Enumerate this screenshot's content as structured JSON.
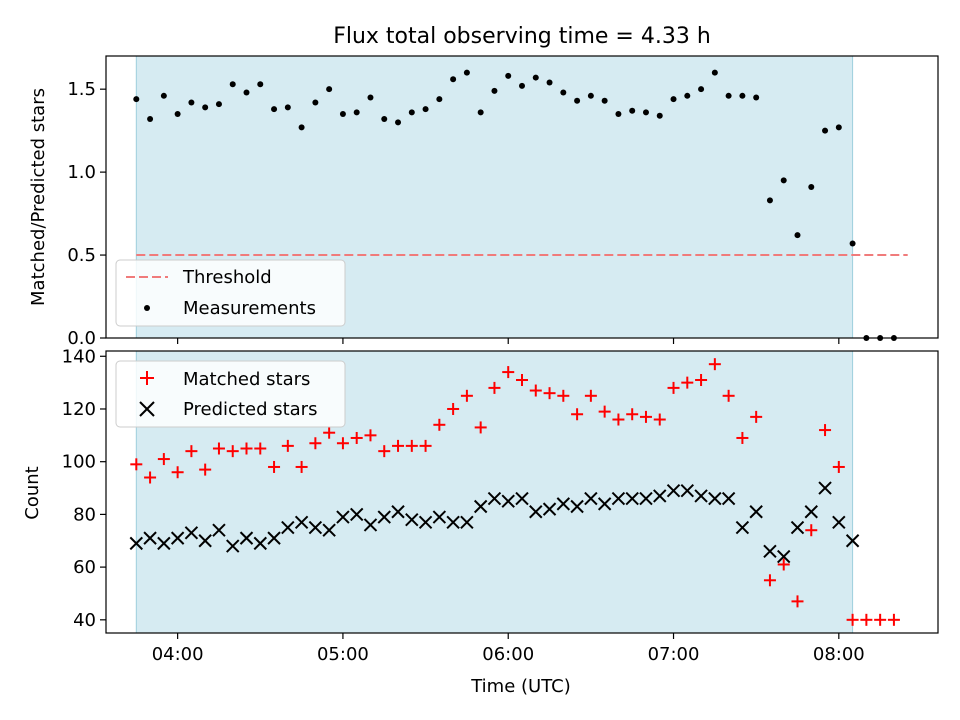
{
  "chart_data": {
    "title": "Flux total observing time = 4.33 h",
    "xlabel": "Time (UTC)",
    "x_ticks": [
      "04:00",
      "05:00",
      "06:00",
      "07:00",
      "08:00"
    ],
    "xlim": [
      "03:34",
      "08:36"
    ],
    "shaded_region": [
      "03:45",
      "08:05"
    ],
    "panels": [
      {
        "type": "scatter",
        "ylabel": "Matched/Predicted stars",
        "ylim": [
          0,
          1.7
        ],
        "y_ticks": [
          "0.0",
          "0.5",
          "1.0",
          "1.5"
        ],
        "legend_position": "lower-left",
        "threshold": {
          "name": "Threshold",
          "value": 0.5,
          "x_range": [
            "03:45",
            "08:25"
          ],
          "color": "#f07b7b"
        },
        "series": [
          {
            "name": "Measurements",
            "color": "#000000",
            "x": [
              "03:45",
              "03:50",
              "03:55",
              "04:00",
              "04:05",
              "04:10",
              "04:15",
              "04:20",
              "04:25",
              "04:30",
              "04:35",
              "04:40",
              "04:45",
              "04:50",
              "04:55",
              "05:00",
              "05:05",
              "05:10",
              "05:15",
              "05:20",
              "05:25",
              "05:30",
              "05:35",
              "05:40",
              "05:45",
              "05:50",
              "05:55",
              "06:00",
              "06:05",
              "06:10",
              "06:15",
              "06:20",
              "06:25",
              "06:30",
              "06:35",
              "06:40",
              "06:45",
              "06:50",
              "06:55",
              "07:00",
              "07:05",
              "07:10",
              "07:15",
              "07:20",
              "07:25",
              "07:30",
              "07:35",
              "07:40",
              "07:45",
              "07:50",
              "07:55",
              "08:00",
              "08:05",
              "08:10",
              "08:15",
              "08:20"
            ],
            "y": [
              1.44,
              1.32,
              1.46,
              1.35,
              1.42,
              1.39,
              1.41,
              1.53,
              1.48,
              1.53,
              1.38,
              1.39,
              1.27,
              1.42,
              1.5,
              1.35,
              1.36,
              1.45,
              1.32,
              1.3,
              1.36,
              1.38,
              1.44,
              1.56,
              1.6,
              1.36,
              1.49,
              1.58,
              1.52,
              1.57,
              1.54,
              1.48,
              1.43,
              1.46,
              1.43,
              1.35,
              1.37,
              1.36,
              1.34,
              1.44,
              1.46,
              1.5,
              1.6,
              1.46,
              1.46,
              1.45,
              0.83,
              0.95,
              0.62,
              0.91,
              1.25,
              1.27,
              0.57,
              0.0,
              0.0,
              0.0
            ]
          }
        ]
      },
      {
        "type": "scatter",
        "ylabel": "Count",
        "ylim": [
          35,
          142
        ],
        "y_ticks": [
          "40",
          "60",
          "80",
          "100",
          "120",
          "140"
        ],
        "legend_position": "upper-left",
        "series": [
          {
            "name": "Matched stars",
            "marker": "plus",
            "color": "#ff0000",
            "x": [
              "03:45",
              "03:50",
              "03:55",
              "04:00",
              "04:05",
              "04:10",
              "04:15",
              "04:20",
              "04:25",
              "04:30",
              "04:35",
              "04:40",
              "04:45",
              "04:50",
              "04:55",
              "05:00",
              "05:05",
              "05:10",
              "05:15",
              "05:20",
              "05:25",
              "05:30",
              "05:35",
              "05:40",
              "05:45",
              "05:50",
              "05:55",
              "06:00",
              "06:05",
              "06:10",
              "06:15",
              "06:20",
              "06:25",
              "06:30",
              "06:35",
              "06:40",
              "06:45",
              "06:50",
              "06:55",
              "07:00",
              "07:05",
              "07:10",
              "07:15",
              "07:20",
              "07:25",
              "07:30",
              "07:35",
              "07:40",
              "07:45",
              "07:50",
              "07:55",
              "08:00",
              "08:05",
              "08:10",
              "08:15",
              "08:20"
            ],
            "y": [
              99,
              94,
              101,
              96,
              104,
              97,
              105,
              104,
              105,
              105,
              98,
              106,
              98,
              107,
              111,
              107,
              109,
              110,
              104,
              106,
              106,
              106,
              114,
              120,
              125,
              113,
              128,
              134,
              131,
              127,
              126,
              125,
              118,
              125,
              119,
              116,
              118,
              117,
              116,
              128,
              130,
              131,
              137,
              125,
              109,
              117,
              55,
              61,
              47,
              74,
              112,
              98,
              40,
              40,
              40,
              40
            ]
          },
          {
            "name": "Predicted stars",
            "marker": "x",
            "color": "#000000",
            "x": [
              "03:45",
              "03:50",
              "03:55",
              "04:00",
              "04:05",
              "04:10",
              "04:15",
              "04:20",
              "04:25",
              "04:30",
              "04:35",
              "04:40",
              "04:45",
              "04:50",
              "04:55",
              "05:00",
              "05:05",
              "05:10",
              "05:15",
              "05:20",
              "05:25",
              "05:30",
              "05:35",
              "05:40",
              "05:45",
              "05:50",
              "05:55",
              "06:00",
              "06:05",
              "06:10",
              "06:15",
              "06:20",
              "06:25",
              "06:30",
              "06:35",
              "06:40",
              "06:45",
              "06:50",
              "06:55",
              "07:00",
              "07:05",
              "07:10",
              "07:15",
              "07:20",
              "07:25",
              "07:30",
              "07:35",
              "07:40",
              "07:45",
              "07:50",
              "07:55",
              "08:00",
              "08:05"
            ],
            "y": [
              69,
              71,
              69,
              71,
              73,
              70,
              74,
              68,
              71,
              69,
              71,
              75,
              77,
              75,
              74,
              79,
              80,
              76,
              79,
              81,
              78,
              77,
              79,
              77,
              77,
              83,
              86,
              85,
              86,
              81,
              82,
              84,
              83,
              86,
              84,
              86,
              86,
              86,
              87,
              89,
              89,
              87,
              86,
              86,
              75,
              81,
              66,
              64,
              75,
              81,
              90,
              77,
              70
            ]
          }
        ]
      }
    ]
  }
}
